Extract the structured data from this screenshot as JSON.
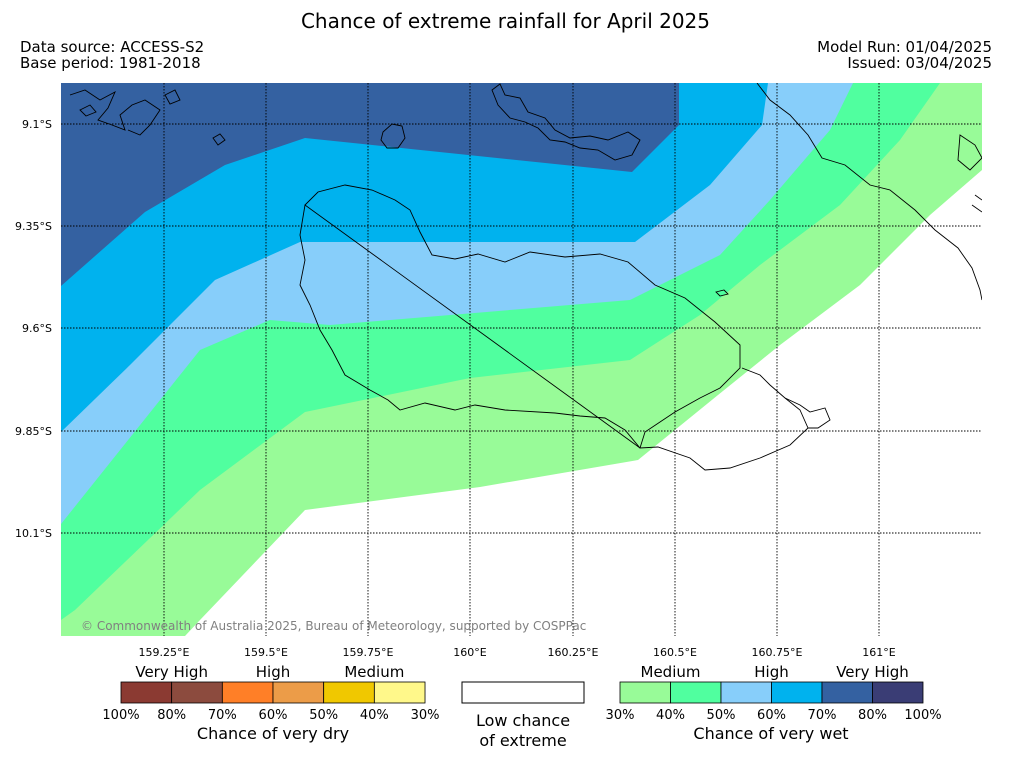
{
  "title": "Chance of extreme rainfall for April 2025",
  "data_source": "Data source: ACCESS-S2",
  "base_period": "Base period: 1981-2018",
  "model_run": "Model Run: 01/04/2025",
  "issued": "Issued: 03/04/2025",
  "copyright": "© Commonwealth of Australia 2025, Bureau of Meteorology, supported by COSPPac",
  "map": {
    "lon_ticks": [
      "159.25°E",
      "159.5°E",
      "159.75°E",
      "160°E",
      "160.25°E",
      "160.5°E",
      "160.75°E",
      "161°E"
    ],
    "lat_ticks": [
      "9.1°S",
      "9.35°S",
      "9.6°S",
      "9.85°S",
      "10.1°S"
    ]
  },
  "legend": {
    "dry": {
      "headers": [
        "Very High",
        "High",
        "Medium"
      ],
      "ticks": [
        "100%",
        "80%",
        "70%",
        "60%",
        "50%",
        "40%",
        "30%"
      ],
      "colors": [
        "#8b3a32",
        "#8c4b3e",
        "#ff7f27",
        "#ec9c48",
        "#f0c800",
        "#fff88a"
      ],
      "title": "Chance of very dry"
    },
    "neutral": {
      "line1": "Low chance",
      "line2": "of extreme"
    },
    "wet": {
      "headers": [
        "Medium",
        "High",
        "Very High"
      ],
      "ticks": [
        "30%",
        "40%",
        "50%",
        "60%",
        "70%",
        "80%",
        "100%"
      ],
      "colors": [
        "#98fb98",
        "#50ff9f",
        "#87cefa",
        "#00b2ee",
        "#3461a1",
        "#3a3d75"
      ],
      "title": "Chance of very wet"
    }
  }
}
